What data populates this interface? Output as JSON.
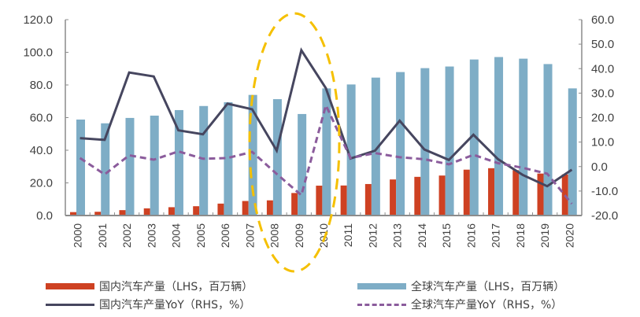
{
  "chart_data": {
    "type": "bar",
    "title": "",
    "xlabel": "",
    "ylabel": "",
    "categories": [
      "2000",
      "2001",
      "2002",
      "2003",
      "2004",
      "2005",
      "2006",
      "2007",
      "2008",
      "2009",
      "2010",
      "2011",
      "2012",
      "2013",
      "2014",
      "2015",
      "2016",
      "2017",
      "2018",
      "2019",
      "2020"
    ],
    "left_axis": {
      "range": [
        0,
        120
      ],
      "ticks": [
        0,
        20,
        40,
        60,
        80,
        100,
        120
      ],
      "tick_labels": [
        "0.0",
        "20.0",
        "40.0",
        "60.0",
        "80.0",
        "100.0",
        "120.0"
      ]
    },
    "right_axis": {
      "range": [
        -20,
        60
      ],
      "ticks": [
        -20,
        -10,
        0,
        10,
        20,
        30,
        40,
        50,
        60
      ],
      "tick_labels": [
        "-20.0",
        "-10.0",
        "0.0",
        "10.0",
        "20.0",
        "30.0",
        "40.0",
        "50.0",
        "60.0"
      ]
    },
    "grid": false,
    "legend_position": "bottom",
    "series": [
      {
        "name": "国内汽车产量（LHS，百万辆）",
        "type": "bar",
        "axis": "left",
        "color": "#CE4122",
        "values": [
          2.1,
          2.3,
          3.3,
          4.4,
          5.1,
          5.7,
          7.3,
          8.9,
          9.3,
          13.8,
          18.3,
          18.4,
          19.3,
          22.1,
          23.7,
          24.5,
          28.1,
          29.0,
          27.8,
          25.7,
          25.2
        ]
      },
      {
        "name": "全球汽车产量（LHS，百万辆）",
        "type": "bar",
        "axis": "left",
        "color": "#7EADC6",
        "values": [
          58.8,
          56.5,
          59.8,
          61.2,
          64.6,
          67.1,
          69.4,
          73.9,
          71.3,
          62.2,
          77.9,
          80.3,
          84.5,
          87.9,
          90.3,
          91.3,
          95.6,
          97.1,
          96.1,
          92.8,
          77.9
        ]
      },
      {
        "name": "国内汽车产量YoY（RHS，%）",
        "type": "line",
        "style": "solid",
        "axis": "right",
        "color": "#46465F",
        "values": [
          11.6,
          10.9,
          38.4,
          36.8,
          14.8,
          13.2,
          25.7,
          23.4,
          6.5,
          47.5,
          32.0,
          3.3,
          6.5,
          18.7,
          7.0,
          2.7,
          13.0,
          3.0,
          -3.4,
          -8.0,
          -1.3
        ]
      },
      {
        "name": "全球汽车产量YoY（RHS，%）",
        "type": "line",
        "style": "dashed",
        "axis": "right",
        "color": "#8B5C9C",
        "values": [
          3.5,
          -3.2,
          4.6,
          2.8,
          6.2,
          3.2,
          3.5,
          6.0,
          -3.0,
          -11.7,
          25.0,
          3.5,
          5.5,
          3.8,
          3.0,
          0.9,
          4.8,
          1.4,
          -0.5,
          -2.9,
          -15.2
        ]
      }
    ],
    "annotations": [
      {
        "type": "dashed-ellipse",
        "color": "#F5C000",
        "highlights": [
          "2008",
          "2009",
          "2010"
        ]
      }
    ]
  },
  "legend": {
    "items": [
      {
        "label": "国内汽车产量（LHS，百万辆）",
        "kind": "bar",
        "color": "#CE4122"
      },
      {
        "label": "国内汽车产量YoY（RHS，%）",
        "kind": "solid-line",
        "color": "#46465F"
      },
      {
        "label": "全球汽车产量（LHS，百万辆）",
        "kind": "bar",
        "color": "#7EADC6"
      },
      {
        "label": "全球汽车产量YoY（RHS，%）",
        "kind": "dashed-line",
        "color": "#8B5C9C"
      }
    ]
  }
}
